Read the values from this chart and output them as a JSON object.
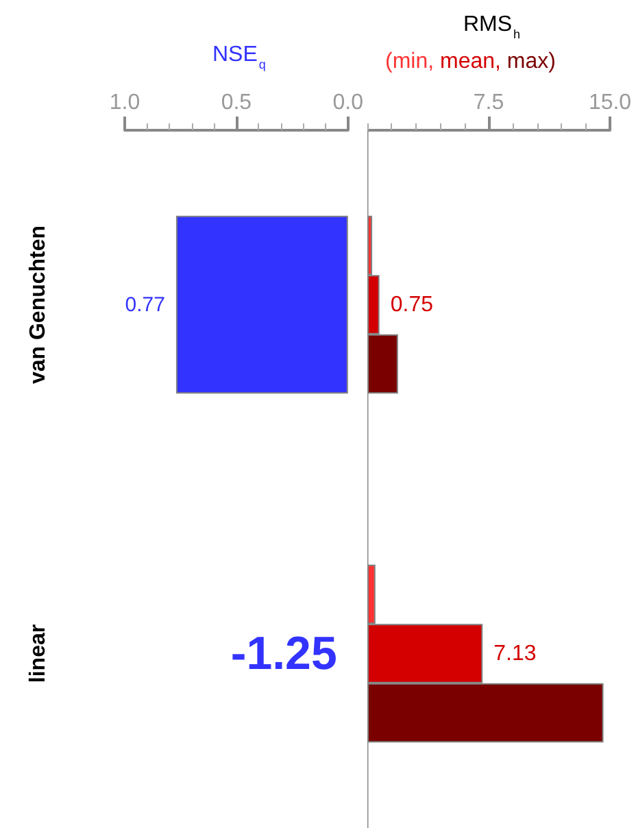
{
  "chart_data": [
    {
      "type": "bar",
      "orientation": "horizontal",
      "title": "NSE$_{q}$",
      "categories": [
        "van Genuchten",
        "linear"
      ],
      "series": [
        {
          "color": "#3333ff",
          "values": [
            0.77,
            null
          ],
          "value_labels": [
            "0.77",
            null
          ]
        }
      ],
      "xlim": [
        1,
        0
      ],
      "xticks": [
        {
          "value": 1,
          "label": "1.0"
        },
        0.5,
        {
          "value": 0,
          "label": "0.0"
        },
        {
          "value": 0.9,
          "label": null
        },
        {
          "value": 0.8,
          "label": null
        },
        {
          "value": 0.7,
          "label": null
        },
        {
          "value": 0.6,
          "label": null
        },
        {
          "value": 0.4,
          "label": null
        },
        {
          "value": 0.3,
          "label": null
        },
        {
          "value": 0.2,
          "label": null
        },
        {
          "value": 0.1,
          "label": null
        }
      ],
      "annotations": [
        "-1.25"
      ],
      "grid": false,
      "legend": false
    },
    {
      "type": "bar",
      "orientation": "horizontal",
      "title": "RMS$_{h}$",
      "series": [
        {
          "name": "(min,",
          "color": "#ff3333",
          "values": [
            0.3,
            0.5
          ]
        },
        {
          "name": "mean,",
          "color": "#d40000",
          "values": [
            0.75,
            7.13
          ],
          "value_labels": [
            "0.75",
            "7.13"
          ]
        },
        {
          "name": "max)",
          "color": "#7a0000",
          "values": [
            1.9,
            14.6
          ]
        }
      ],
      "xlim": [
        0,
        15
      ],
      "xticks": [
        {
          "value": 0,
          "label": null
        },
        7.5,
        {
          "value": 15,
          "label": "15.0"
        },
        {
          "value": 1.5,
          "label": null
        },
        {
          "value": 3,
          "label": null
        },
        {
          "value": 4.5,
          "label": null
        },
        {
          "value": 6,
          "label": null
        },
        {
          "value": 9,
          "label": null
        },
        {
          "value": 10.5,
          "label": null
        },
        {
          "value": 12,
          "label": null
        },
        {
          "value": 13.5,
          "label": null
        }
      ],
      "tick_labels": "x",
      "grid": false,
      "legend": "top"
    }
  ]
}
